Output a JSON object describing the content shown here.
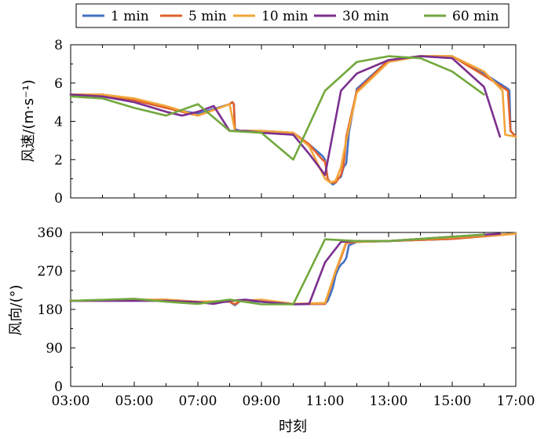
{
  "chart_data": [
    {
      "type": "line",
      "xlabel": "",
      "ylabel": "风速/(m·s⁻¹)",
      "xlim": [
        "03:00",
        "17:00"
      ],
      "ylim": [
        0,
        8
      ],
      "y_ticks": [
        "0",
        "2",
        "4",
        "6",
        "8"
      ],
      "x_ticks": [
        "03:00",
        "05:00",
        "07:00",
        "09:00",
        "11:00",
        "13:00",
        "15:00",
        "17:00"
      ],
      "grid": false,
      "series": [
        {
          "name": "1 min",
          "x": [
            "03:00",
            "04:00",
            "05:00",
            "06:00",
            "07:00",
            "08:00",
            "08:05",
            "08:08",
            "08:10",
            "08:20",
            "09:00",
            "10:00",
            "10:30",
            "10:55",
            "11:00",
            "11:05",
            "11:10",
            "11:15",
            "11:20",
            "11:25",
            "11:30",
            "11:35",
            "11:40",
            "11:45",
            "12:00",
            "13:00",
            "14:00",
            "15:00",
            "16:00",
            "16:45",
            "16:48",
            "16:50",
            "17:00"
          ],
          "values": [
            5.4,
            5.4,
            5.1,
            4.7,
            4.4,
            4.9,
            5.0,
            4.9,
            3.6,
            3.5,
            3.5,
            3.4,
            2.8,
            2.2,
            2.0,
            1.0,
            0.8,
            0.7,
            0.8,
            1.0,
            1.1,
            1.6,
            1.8,
            3.4,
            5.7,
            7.2,
            7.4,
            7.4,
            6.5,
            5.7,
            5.6,
            3.5,
            3.2
          ]
        },
        {
          "name": "5 min",
          "x": [
            "03:00",
            "04:00",
            "05:00",
            "06:00",
            "07:00",
            "08:00",
            "08:05",
            "08:08",
            "08:10",
            "08:20",
            "09:00",
            "10:00",
            "10:30",
            "10:55",
            "11:00",
            "11:05",
            "11:10",
            "11:20",
            "11:30",
            "11:35",
            "11:40",
            "12:00",
            "13:00",
            "14:00",
            "15:00",
            "16:00",
            "16:45",
            "16:50",
            "17:00"
          ],
          "values": [
            5.4,
            5.4,
            5.1,
            4.7,
            4.3,
            4.9,
            5.0,
            4.9,
            3.5,
            3.5,
            3.5,
            3.4,
            2.8,
            2.0,
            1.9,
            1.0,
            0.8,
            0.8,
            1.2,
            1.7,
            3.2,
            5.6,
            7.2,
            7.4,
            7.4,
            6.4,
            5.6,
            3.5,
            3.2
          ]
        },
        {
          "name": "10 min",
          "x": [
            "03:00",
            "04:00",
            "05:00",
            "06:00",
            "07:00",
            "08:00",
            "08:10",
            "08:20",
            "09:00",
            "10:00",
            "10:30",
            "11:00",
            "11:10",
            "11:20",
            "11:30",
            "11:40",
            "12:00",
            "13:00",
            "14:00",
            "15:00",
            "16:00",
            "16:35",
            "16:40",
            "17:00"
          ],
          "values": [
            5.4,
            5.4,
            5.2,
            4.8,
            4.3,
            4.9,
            3.5,
            3.5,
            3.5,
            3.4,
            2.7,
            1.0,
            0.8,
            0.9,
            1.6,
            3.0,
            5.5,
            7.1,
            7.4,
            7.4,
            6.6,
            5.6,
            3.3,
            3.2
          ]
        },
        {
          "name": "30 min",
          "x": [
            "03:00",
            "04:00",
            "05:00",
            "06:00",
            "06:30",
            "07:00",
            "07:30",
            "08:00",
            "08:30",
            "09:00",
            "10:00",
            "10:30",
            "11:00",
            "11:30",
            "12:00",
            "13:00",
            "14:00",
            "15:00",
            "16:00",
            "16:30"
          ],
          "values": [
            5.4,
            5.3,
            5.0,
            4.5,
            4.3,
            4.5,
            4.8,
            3.5,
            3.5,
            3.4,
            3.3,
            2.3,
            1.2,
            5.6,
            6.5,
            7.2,
            7.4,
            7.3,
            5.8,
            3.2
          ]
        },
        {
          "name": "60 min",
          "x": [
            "03:00",
            "04:00",
            "05:00",
            "06:00",
            "07:00",
            "08:00",
            "09:00",
            "10:00",
            "11:00",
            "12:00",
            "13:00",
            "14:00",
            "15:00",
            "16:00"
          ],
          "values": [
            5.3,
            5.2,
            4.7,
            4.3,
            4.9,
            3.5,
            3.4,
            2.0,
            5.6,
            7.1,
            7.4,
            7.3,
            6.6,
            5.4
          ]
        }
      ]
    },
    {
      "type": "line",
      "xlabel": "时刻",
      "ylabel": "风向/(°)",
      "xlim": [
        "03:00",
        "17:00"
      ],
      "ylim": [
        0,
        360
      ],
      "y_ticks": [
        "0",
        "90",
        "180",
        "270",
        "360"
      ],
      "x_ticks": [
        "03:00",
        "05:00",
        "07:00",
        "09:00",
        "11:00",
        "13:00",
        "15:00",
        "17:00"
      ],
      "grid": false,
      "series": [
        {
          "name": "1 min",
          "x": [
            "03:00",
            "05:00",
            "06:00",
            "07:00",
            "08:00",
            "08:10",
            "08:20",
            "09:00",
            "10:00",
            "11:00",
            "11:05",
            "11:10",
            "11:15",
            "11:20",
            "11:25",
            "11:30",
            "11:35",
            "11:40",
            "11:45",
            "12:00",
            "13:00",
            "15:00",
            "17:00"
          ],
          "values": [
            200,
            202,
            202,
            196,
            198,
            190,
            200,
            198,
            192,
            193,
            200,
            215,
            232,
            260,
            275,
            285,
            290,
            300,
            330,
            338,
            340,
            345,
            358
          ]
        },
        {
          "name": "5 min",
          "x": [
            "03:00",
            "05:00",
            "06:00",
            "07:00",
            "08:00",
            "08:10",
            "08:20",
            "09:00",
            "10:00",
            "11:00",
            "11:10",
            "11:20",
            "11:30",
            "11:40",
            "12:00",
            "13:00",
            "15:00",
            "17:00"
          ],
          "values": [
            200,
            202,
            203,
            198,
            198,
            192,
            200,
            202,
            193,
            193,
            230,
            270,
            300,
            335,
            338,
            340,
            345,
            357
          ]
        },
        {
          "name": "10 min",
          "x": [
            "03:00",
            "05:00",
            "06:00",
            "07:00",
            "08:00",
            "08:20",
            "09:00",
            "10:00",
            "11:00",
            "11:20",
            "11:40",
            "12:00",
            "13:00",
            "15:00",
            "17:00"
          ],
          "values": [
            200,
            203,
            203,
            198,
            200,
            200,
            203,
            193,
            195,
            270,
            338,
            338,
            340,
            348,
            357
          ]
        },
        {
          "name": "30 min",
          "x": [
            "03:00",
            "05:00",
            "06:00",
            "07:00",
            "07:30",
            "08:00",
            "08:30",
            "09:00",
            "10:00",
            "10:30",
            "11:00",
            "11:30",
            "12:00",
            "13:00",
            "15:00",
            "16:30"
          ],
          "values": [
            200,
            200,
            200,
            197,
            193,
            200,
            203,
            198,
            192,
            193,
            290,
            338,
            340,
            340,
            350,
            357
          ]
        },
        {
          "name": "60 min",
          "x": [
            "03:00",
            "05:00",
            "06:00",
            "07:00",
            "08:00",
            "09:00",
            "10:00",
            "11:00",
            "12:00",
            "13:00",
            "16:00"
          ],
          "values": [
            200,
            205,
            198,
            193,
            203,
            192,
            192,
            344,
            340,
            340,
            355
          ]
        }
      ]
    }
  ],
  "legend": {
    "entries": [
      {
        "name": "1 min",
        "color": "#4472C4"
      },
      {
        "name": "5 min",
        "color": "#E0602A"
      },
      {
        "name": "10 min",
        "color": "#F2A53A"
      },
      {
        "name": "30 min",
        "color": "#7B2F8E"
      },
      {
        "name": "60 min",
        "color": "#72A83E"
      }
    ],
    "placement": "top"
  }
}
